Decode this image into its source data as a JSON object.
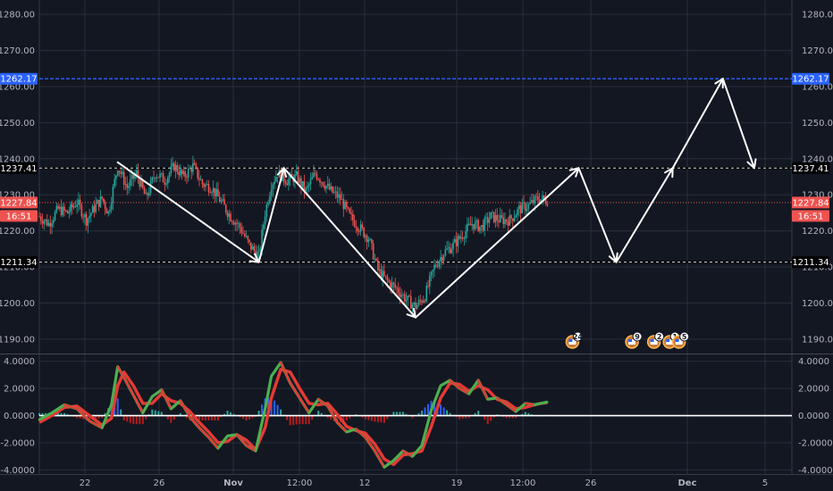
{
  "chart_data": [
    {
      "type": "candlestick",
      "panel": "price",
      "title": "",
      "y_ticks": [
        "1190.00",
        "1200.00",
        "1210.00",
        "1220.00",
        "1230.00",
        "1240.00",
        "1250.00",
        "1260.00",
        "1270.00",
        "1280.00"
      ],
      "ylim": [
        1186,
        1284
      ],
      "x_ticks": [
        "22",
        "26",
        "Nov",
        "12:00",
        "12",
        "19",
        "12:00",
        "26",
        "Dec",
        "5"
      ],
      "grid": true,
      "colors": {
        "up": "#26a69a",
        "down": "#ef5350",
        "background": "#131722",
        "grid": "#2a2e39",
        "projection": "#ffffff"
      },
      "levels": [
        {
          "label": "1262.17",
          "value": 1262.17,
          "color": "#2962ff",
          "style": "solid"
        },
        {
          "label": "1237.41",
          "value": 1237.41,
          "color": "#000000",
          "style": "dashed"
        },
        {
          "label": "1211.34",
          "value": 1211.34,
          "color": "#000000",
          "style": "dashed"
        },
        {
          "label": "1227.84",
          "value": 1227.84,
          "color": "#ef5350",
          "style": "dotted"
        }
      ],
      "countdown": "16:51",
      "price_path": [
        [
          0,
          1224
        ],
        [
          3,
          1222
        ],
        [
          6,
          1226
        ],
        [
          9,
          1225
        ],
        [
          12,
          1228
        ],
        [
          15,
          1223
        ],
        [
          18,
          1227
        ],
        [
          20,
          1229
        ],
        [
          22,
          1225
        ],
        [
          25,
          1238
        ],
        [
          28,
          1232
        ],
        [
          31,
          1236
        ],
        [
          34,
          1229
        ],
        [
          37,
          1236
        ],
        [
          40,
          1234
        ],
        [
          43,
          1238
        ],
        [
          46,
          1235
        ],
        [
          49,
          1238
        ],
        [
          52,
          1233
        ],
        [
          55,
          1232
        ],
        [
          58,
          1228
        ],
        [
          61,
          1224
        ],
        [
          64,
          1221
        ],
        [
          67,
          1216
        ],
        [
          70,
          1213
        ],
        [
          72,
          1225
        ],
        [
          74,
          1233
        ],
        [
          76,
          1236
        ],
        [
          79,
          1234
        ],
        [
          82,
          1235
        ],
        [
          85,
          1231
        ],
        [
          88,
          1236
        ],
        [
          90,
          1234
        ],
        [
          93,
          1231
        ],
        [
          96,
          1229
        ],
        [
          99,
          1224
        ],
        [
          102,
          1221
        ],
        [
          105,
          1218
        ],
        [
          108,
          1209
        ],
        [
          111,
          1206
        ],
        [
          114,
          1204
        ],
        [
          117,
          1201
        ],
        [
          120,
          1199
        ],
        [
          123,
          1202
        ],
        [
          126,
          1210
        ],
        [
          129,
          1214
        ],
        [
          132,
          1216
        ],
        [
          135,
          1219
        ],
        [
          138,
          1222
        ],
        [
          141,
          1221
        ],
        [
          144,
          1224
        ],
        [
          147,
          1223
        ],
        [
          150,
          1223
        ],
        [
          153,
          1226
        ],
        [
          156,
          1227
        ],
        [
          159,
          1229
        ],
        [
          162,
          1228.5
        ]
      ],
      "projection_path": [
        [
          25,
          1239
        ],
        [
          70,
          1211.34
        ],
        [
          78,
          1237.41
        ],
        [
          120,
          1196
        ],
        [
          172,
          1237.41
        ],
        [
          184,
          1211.34
        ],
        [
          202,
          1237.41
        ],
        [
          218,
          1262.17
        ],
        [
          228,
          1237.41
        ]
      ],
      "events": [
        {
          "x": 170,
          "count": "24"
        },
        {
          "x": 189,
          "count": "9"
        },
        {
          "x": 196,
          "count": "2"
        },
        {
          "x": 201,
          "count": "1"
        },
        {
          "x": 204,
          "count": "5"
        }
      ]
    },
    {
      "type": "oscillator",
      "panel": "indicator",
      "title": "",
      "y_ticks": [
        "-4.0000",
        "-2.0000",
        "0.0000",
        "2.0000",
        "4.0000"
      ],
      "ylim": [
        -4.3,
        4.5
      ],
      "zero_line": 0.0,
      "colors": {
        "fast": "#26a69a",
        "slow": "#d32f2f",
        "fast_line": "#4caf50",
        "slow_line": "#e53935",
        "hist": "#2962ff",
        "zero": "#ffffff"
      },
      "fast": [
        [
          0,
          -0.3
        ],
        [
          4,
          0.2
        ],
        [
          8,
          0.8
        ],
        [
          12,
          0.5
        ],
        [
          16,
          -0.4
        ],
        [
          20,
          -0.9
        ],
        [
          23,
          0.8
        ],
        [
          25,
          3.6
        ],
        [
          27,
          2.8
        ],
        [
          30,
          1.5
        ],
        [
          33,
          0.2
        ],
        [
          36,
          1.4
        ],
        [
          39,
          1.9
        ],
        [
          42,
          0.5
        ],
        [
          45,
          1.1
        ],
        [
          48,
          -0.1
        ],
        [
          51,
          -0.9
        ],
        [
          54,
          -1.6
        ],
        [
          57,
          -2.4
        ],
        [
          60,
          -1.5
        ],
        [
          63,
          -1.4
        ],
        [
          66,
          -2.2
        ],
        [
          69,
          -2.6
        ],
        [
          72,
          0.5
        ],
        [
          74,
          2.9
        ],
        [
          77,
          3.9
        ],
        [
          80,
          2.4
        ],
        [
          83,
          1.3
        ],
        [
          86,
          0.2
        ],
        [
          89,
          1.2
        ],
        [
          92,
          0.7
        ],
        [
          95,
          -0.5
        ],
        [
          98,
          -1.2
        ],
        [
          101,
          -1.0
        ],
        [
          104,
          -1.6
        ],
        [
          107,
          -2.6
        ],
        [
          110,
          -3.8
        ],
        [
          113,
          -3.3
        ],
        [
          116,
          -2.6
        ],
        [
          119,
          -3.0
        ],
        [
          122,
          -2.2
        ],
        [
          125,
          0.4
        ],
        [
          128,
          2.2
        ],
        [
          131,
          2.6
        ],
        [
          134,
          2.0
        ],
        [
          137,
          1.6
        ],
        [
          140,
          2.6
        ],
        [
          143,
          1.2
        ],
        [
          146,
          1.3
        ],
        [
          149,
          0.8
        ],
        [
          152,
          0.3
        ],
        [
          155,
          0.9
        ],
        [
          158,
          0.8
        ],
        [
          160,
          0.9
        ],
        [
          162,
          1.0
        ]
      ],
      "slow": [
        [
          0,
          -0.5
        ],
        [
          4,
          0.0
        ],
        [
          8,
          0.6
        ],
        [
          12,
          0.7
        ],
        [
          16,
          0.0
        ],
        [
          20,
          -0.7
        ],
        [
          23,
          -0.2
        ],
        [
          25,
          2.2
        ],
        [
          27,
          3.2
        ],
        [
          30,
          2.2
        ],
        [
          33,
          0.9
        ],
        [
          36,
          0.9
        ],
        [
          39,
          1.6
        ],
        [
          42,
          1.1
        ],
        [
          45,
          0.9
        ],
        [
          48,
          0.3
        ],
        [
          51,
          -0.5
        ],
        [
          54,
          -1.2
        ],
        [
          57,
          -2.0
        ],
        [
          60,
          -1.9
        ],
        [
          63,
          -1.4
        ],
        [
          66,
          -1.8
        ],
        [
          69,
          -2.5
        ],
        [
          72,
          -0.9
        ],
        [
          74,
          1.3
        ],
        [
          77,
          3.4
        ],
        [
          80,
          3.2
        ],
        [
          83,
          2.0
        ],
        [
          86,
          0.9
        ],
        [
          89,
          0.8
        ],
        [
          92,
          0.9
        ],
        [
          95,
          0.1
        ],
        [
          98,
          -0.8
        ],
        [
          101,
          -1.1
        ],
        [
          104,
          -1.3
        ],
        [
          107,
          -2.1
        ],
        [
          110,
          -3.2
        ],
        [
          113,
          -3.6
        ],
        [
          116,
          -2.9
        ],
        [
          119,
          -2.8
        ],
        [
          122,
          -2.6
        ],
        [
          125,
          -0.8
        ],
        [
          128,
          1.3
        ],
        [
          131,
          2.4
        ],
        [
          134,
          2.3
        ],
        [
          137,
          1.8
        ],
        [
          140,
          2.2
        ],
        [
          143,
          1.9
        ],
        [
          146,
          1.2
        ],
        [
          149,
          1.0
        ],
        [
          152,
          0.5
        ],
        [
          155,
          0.6
        ],
        [
          158,
          0.8
        ],
        [
          160,
          0.9
        ],
        [
          162,
          0.95
        ]
      ]
    }
  ]
}
